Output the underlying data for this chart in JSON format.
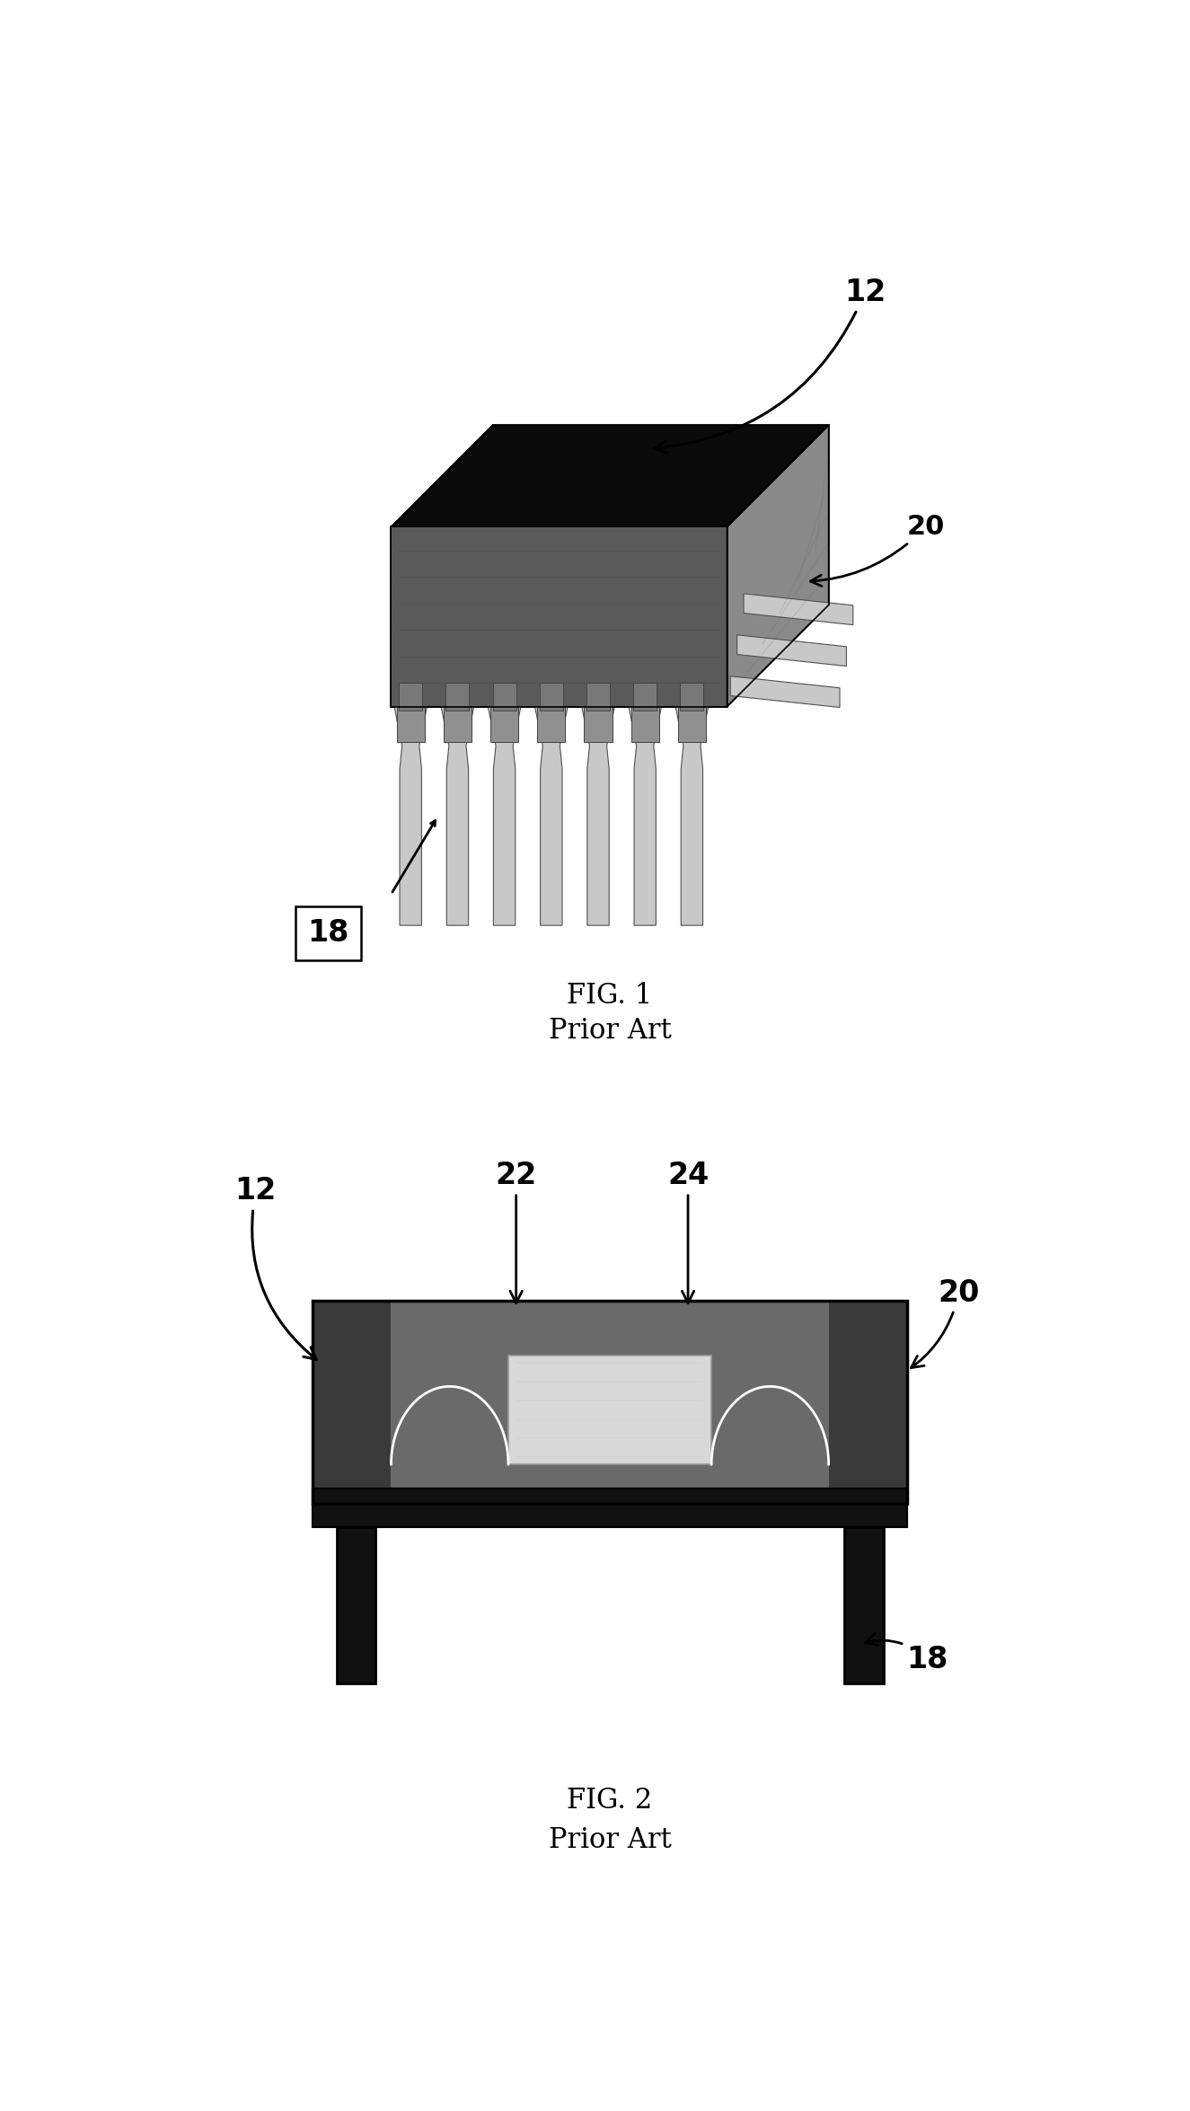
{
  "fig1": {
    "title": "FIG. 1",
    "subtitle": "Prior Art",
    "label_12": "12",
    "label_18": "18",
    "label_20": "20"
  },
  "fig2": {
    "title": "FIG. 2",
    "subtitle": "Prior Art",
    "label_12": "12",
    "label_18": "18",
    "label_20": "20",
    "label_22": "22",
    "label_24": "24"
  },
  "bg_color": "#ffffff",
  "text_color": "#000000",
  "title_fontsize": 22,
  "subtitle_fontsize": 22,
  "label_fontsize": 20
}
